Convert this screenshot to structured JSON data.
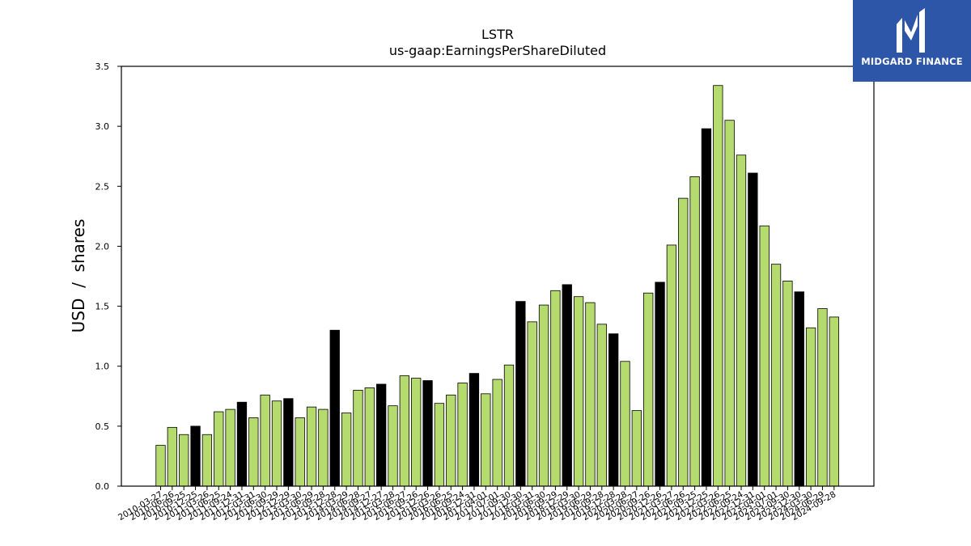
{
  "chart_data": {
    "type": "bar",
    "title": "LSTR",
    "subtitle": "us-gaap:EarningsPerShareDiluted",
    "ylabel": "USD  /  shares",
    "xlabel": "",
    "ylim": [
      0,
      3.5
    ],
    "yticks": [
      0.0,
      0.5,
      1.0,
      1.5,
      2.0,
      2.5,
      3.0,
      3.5
    ],
    "grid": false,
    "colors": {
      "quarter": "#b5db6f",
      "fiscal_year": "#000000"
    },
    "categories": [
      "2010-03-27",
      "2010-06-26",
      "2010-09-25",
      "2010-12-25",
      "2011-03-26",
      "2011-06-25",
      "2011-09-24",
      "2011-12-31",
      "2012-03-31",
      "2012-06-30",
      "2012-09-29",
      "2012-12-29",
      "2013-03-30",
      "2013-06-29",
      "2013-09-28",
      "2013-12-28",
      "2014-03-29",
      "2014-06-28",
      "2014-09-27",
      "2014-12-27",
      "2015-03-28",
      "2015-06-27",
      "2015-09-26",
      "2015-12-26",
      "2016-03-26",
      "2016-06-25",
      "2016-09-24",
      "2016-12-31",
      "2017-04-01",
      "2017-07-01",
      "2017-09-30",
      "2017-12-30",
      "2018-03-31",
      "2018-06-30",
      "2018-09-29",
      "2018-12-29",
      "2019-03-30",
      "2019-06-29",
      "2019-09-28",
      "2019-12-28",
      "2020-03-28",
      "2020-06-27",
      "2020-09-26",
      "2020-12-26",
      "2021-03-27",
      "2021-06-26",
      "2021-09-25",
      "2021-12-25",
      "2022-03-26",
      "2022-06-25",
      "2022-09-24",
      "2022-12-31",
      "2023-04-01",
      "2023-07-01",
      "2023-09-30",
      "2023-12-30",
      "2024-03-30",
      "2024-06-29",
      "2024-09-28"
    ],
    "tick_labels": [
      "2010-03-27",
      "2010-06-26",
      "2010-09-25",
      "2010-12-25",
      "2011-03-26",
      "2011-06-25",
      "2011-09-24",
      "2011-12-31",
      "2012-03-31",
      "2012-06-30",
      "2012-09-29",
      "2012-12-29",
      "2013-03-30",
      "2013-06-29",
      "2013-09-28",
      "2013-12-28",
      "2014-03-29",
      "2014-06-28",
      "2014-09-27",
      "2014-12-27",
      "2015-03-28",
      "2015-06-27",
      "2015-09-26",
      "2015-12-26",
      "2016-03-26",
      "2016-06-25",
      "2016-09-24",
      "2016-12-31",
      "2017-04-01",
      "2017-07-01",
      "2017-09-30",
      "2017-12-30",
      "2018-03-31",
      "2018-06-30",
      "2018-09-29",
      "2018-12-29",
      "2019-03-30",
      "2019-06-29",
      "2019-09-28",
      "2019-12-28",
      "2020-03-28",
      "2020-06-27",
      "2020-09-26",
      "2020-12-26",
      "2021-03-27",
      "2021-06-26",
      "2021-09-25",
      "2021-12-25",
      "2022-03-26",
      "2022-06-25",
      "2022-09-24",
      "2022-12-31",
      "2023-04-01",
      "2023-07-01",
      "2023-09-30",
      "2023-12-30",
      "2024-03-30",
      "2024-06-29",
      "2024-09-28"
    ],
    "values": [
      0.34,
      0.49,
      0.43,
      0.5,
      0.43,
      0.62,
      0.64,
      0.7,
      0.57,
      0.76,
      0.71,
      0.73,
      0.57,
      0.66,
      0.64,
      1.3,
      0.61,
      0.8,
      0.82,
      0.85,
      0.67,
      0.92,
      0.9,
      0.88,
      0.69,
      0.76,
      0.86,
      0.94,
      0.77,
      0.89,
      1.01,
      1.54,
      1.37,
      1.51,
      1.63,
      1.68,
      1.58,
      1.53,
      1.35,
      1.27,
      1.04,
      0.63,
      1.61,
      1.7,
      2.01,
      2.4,
      2.58,
      2.98,
      3.34,
      3.05,
      2.76,
      2.61,
      2.17,
      1.85,
      1.71,
      1.62,
      1.32,
      1.48,
      1.41
    ],
    "highlighted_categories": [
      "2010-12-25",
      "2011-12-31",
      "2012-12-29",
      "2013-12-28",
      "2014-12-27",
      "2015-12-26",
      "2016-12-31",
      "2017-12-30",
      "2018-12-29",
      "2019-12-28",
      "2020-12-26",
      "2021-12-25",
      "2022-12-31",
      "2023-12-30"
    ]
  },
  "logo": {
    "text": "MIDGARD FINANCE",
    "background": "#2d56a8"
  }
}
